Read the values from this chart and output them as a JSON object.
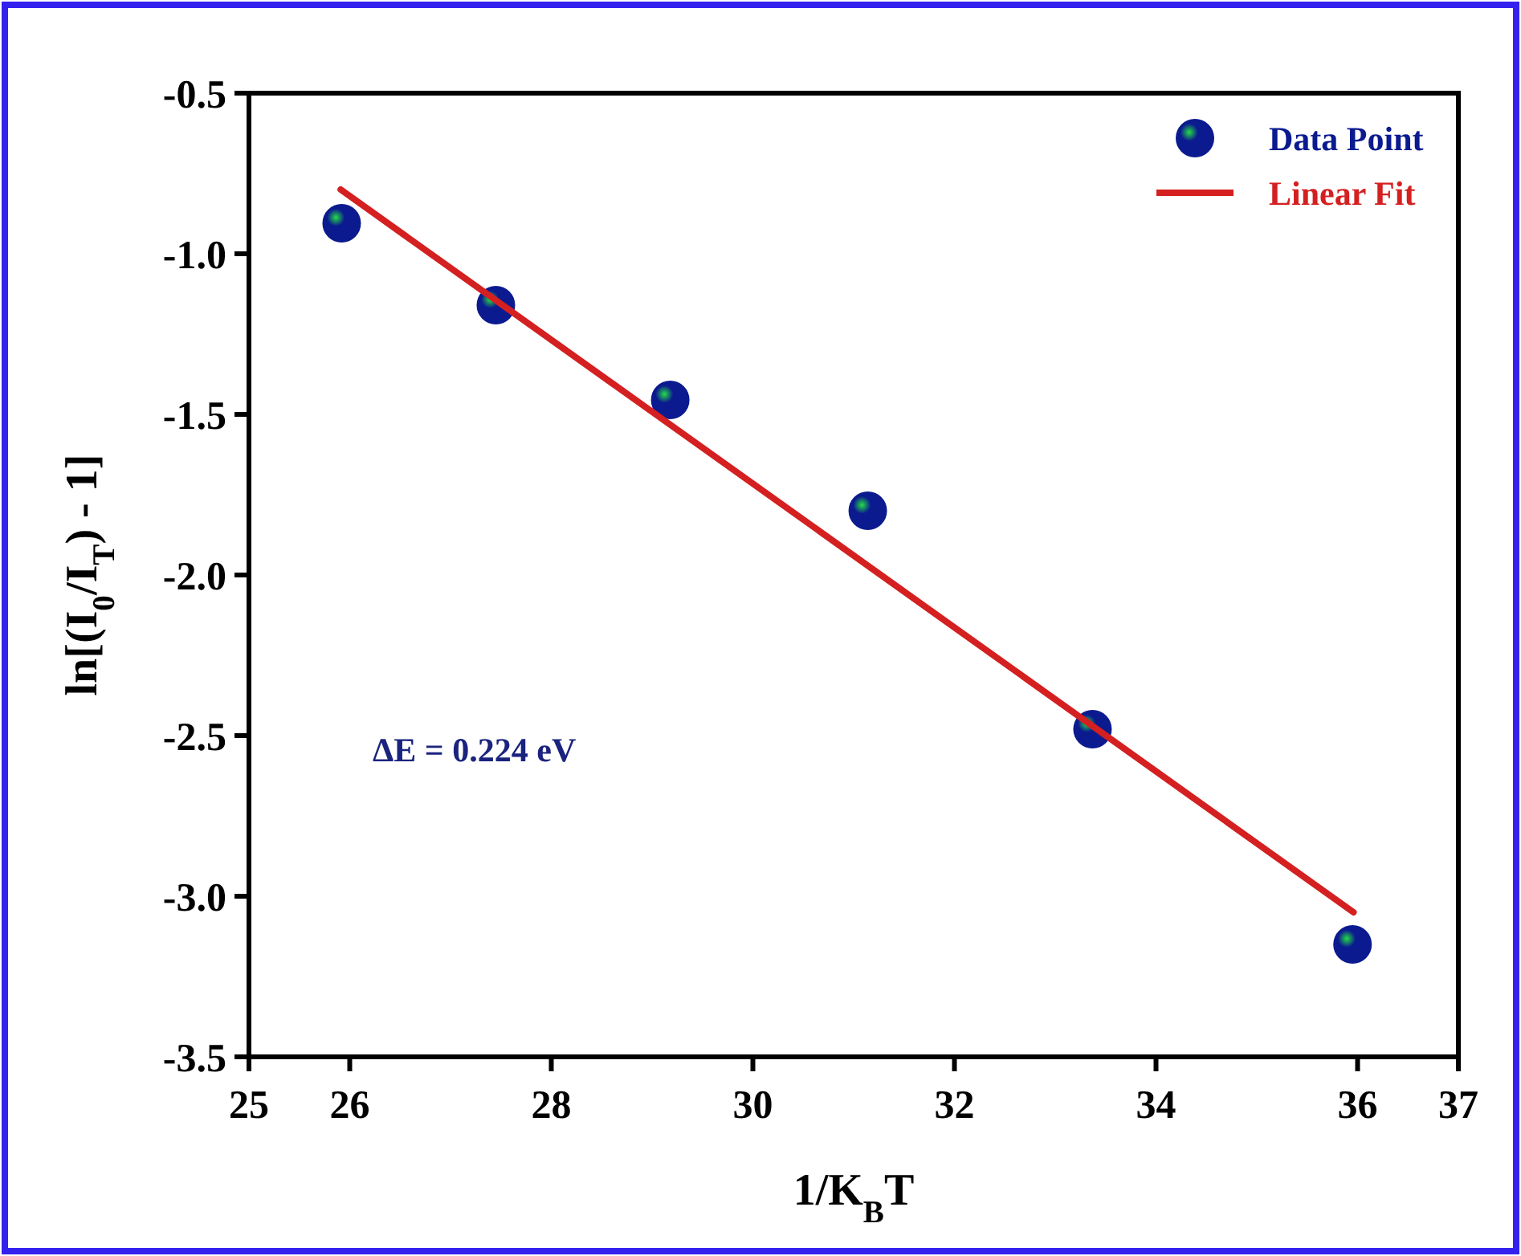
{
  "chart_data": {
    "type": "scatter",
    "xlabel": "1/K$_{B}$T",
    "ylabel": "ln[(I$_{0}$/I$_{T}$) - 1]",
    "xlim": [
      25,
      37
    ],
    "xticks": [
      25,
      26,
      28,
      30,
      32,
      34,
      36,
      37
    ],
    "ylim": [
      -3.5,
      -0.5
    ],
    "yticks": [
      -3.5,
      {
        "value": -3,
        "label": "-3.0"
      },
      -2.5,
      {
        "value": -2,
        "label": "-2.0"
      },
      -1.5,
      {
        "value": -1,
        "label": "-1.0"
      },
      -0.5
    ],
    "series": [
      {
        "name": "Data Point",
        "color": "#0b1a8f",
        "marker": "circle",
        "x": [
          25.92,
          27.45,
          29.18,
          31.14,
          33.37,
          35.95
        ],
        "values": [
          -0.905,
          -1.16,
          -1.455,
          -1.8,
          -2.48,
          -3.15
        ]
      },
      {
        "name": "Linear Fit",
        "type": "line",
        "color": "#d42020",
        "line_style": "solid",
        "x": [
          25.91,
          35.96
        ],
        "values": [
          -0.8,
          -3.05
        ]
      }
    ],
    "annotations": [
      "ΔE = 0.224 eV"
    ],
    "legend": "top right",
    "grid": false
  }
}
